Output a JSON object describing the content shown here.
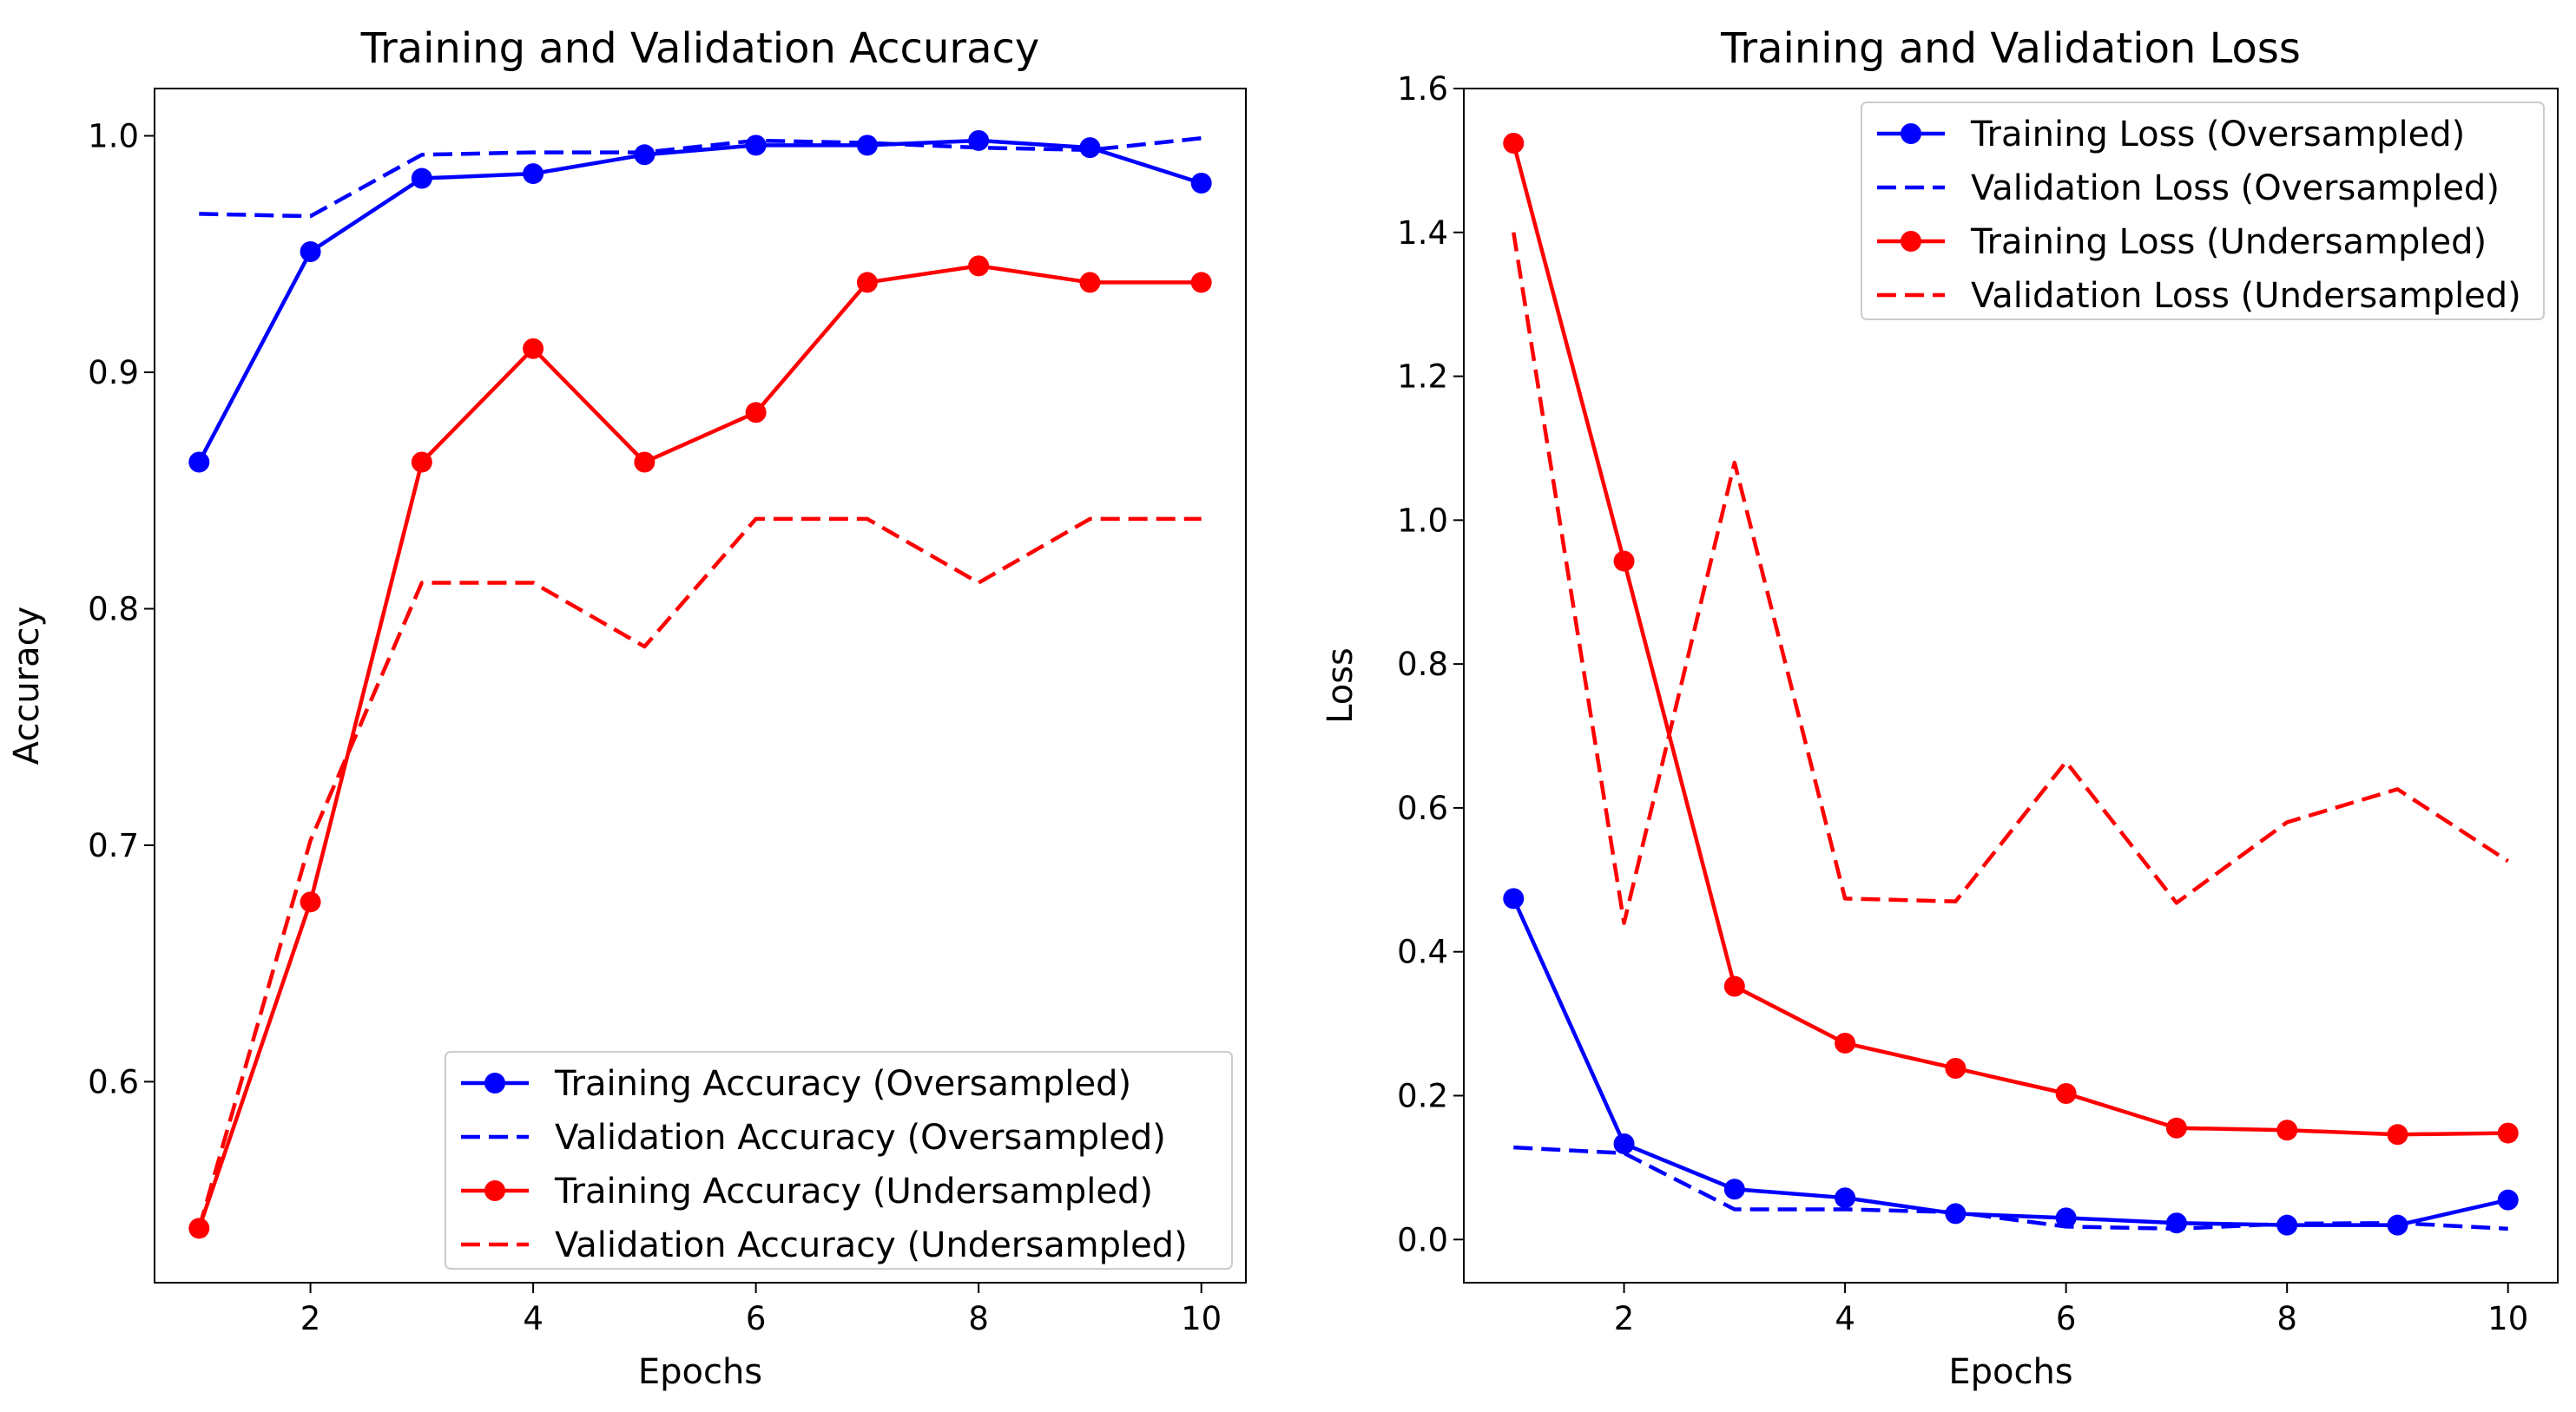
{
  "chart_data": [
    {
      "type": "line",
      "title": "Training and Validation Accuracy",
      "xlabel": "Epochs",
      "ylabel": "Accuracy",
      "xlim": [
        0.6,
        10.4
      ],
      "ylim": [
        0.515,
        1.02
      ],
      "xticks": [
        2,
        4,
        6,
        8,
        10
      ],
      "xtick_labels": [
        "2",
        "4",
        "6",
        "8",
        "10"
      ],
      "yticks": [
        0.6,
        0.7,
        0.8,
        0.9,
        1.0
      ],
      "ytick_labels": [
        "0.6",
        "0.7",
        "0.8",
        "0.9",
        "1.0"
      ],
      "grid": false,
      "legend_position": "lower-right",
      "x": [
        1,
        2,
        3,
        4,
        5,
        6,
        7,
        8,
        9,
        10
      ],
      "series": [
        {
          "name": "Training Accuracy (Oversampled)",
          "color": "#0000ff",
          "style": "solid",
          "marker": "circle",
          "values": [
            0.862,
            0.951,
            0.982,
            0.984,
            0.992,
            0.996,
            0.996,
            0.998,
            0.995,
            0.98
          ]
        },
        {
          "name": "Validation Accuracy (Oversampled)",
          "color": "#0000ff",
          "style": "dashed",
          "marker": "none",
          "values": [
            0.967,
            0.966,
            0.992,
            0.993,
            0.993,
            0.998,
            0.997,
            0.995,
            0.994,
            0.999
          ]
        },
        {
          "name": "Training Accuracy (Undersampled)",
          "color": "#ff0000",
          "style": "solid",
          "marker": "circle",
          "values": [
            0.538,
            0.676,
            0.862,
            0.91,
            0.862,
            0.883,
            0.938,
            0.945,
            0.938,
            0.938
          ]
        },
        {
          "name": "Validation Accuracy (Undersampled)",
          "color": "#ff0000",
          "style": "dashed",
          "marker": "none",
          "values": [
            0.538,
            0.702,
            0.811,
            0.811,
            0.784,
            0.838,
            0.838,
            0.811,
            0.838,
            0.838
          ]
        }
      ]
    },
    {
      "type": "line",
      "title": "Training and Validation Loss",
      "xlabel": "Epochs",
      "ylabel": "Loss",
      "xlim": [
        0.55,
        10.45
      ],
      "ylim": [
        -0.06,
        1.6
      ],
      "xticks": [
        2,
        4,
        6,
        8,
        10
      ],
      "xtick_labels": [
        "2",
        "4",
        "6",
        "8",
        "10"
      ],
      "yticks": [
        0.0,
        0.2,
        0.4,
        0.6,
        0.8,
        1.0,
        1.2,
        1.4,
        1.6
      ],
      "ytick_labels": [
        "0.0",
        "0.2",
        "0.4",
        "0.6",
        "0.8",
        "1.0",
        "1.2",
        "1.4",
        "1.6"
      ],
      "grid": false,
      "legend_position": "upper-right",
      "x": [
        1,
        2,
        3,
        4,
        5,
        6,
        7,
        8,
        9,
        10
      ],
      "series": [
        {
          "name": "Training Loss (Oversampled)",
          "color": "#0000ff",
          "style": "solid",
          "marker": "circle",
          "values": [
            0.474,
            0.133,
            0.07,
            0.058,
            0.036,
            0.03,
            0.023,
            0.02,
            0.02,
            0.055
          ]
        },
        {
          "name": "Validation Loss (Oversampled)",
          "color": "#0000ff",
          "style": "dashed",
          "marker": "none",
          "values": [
            0.128,
            0.12,
            0.042,
            0.042,
            0.038,
            0.018,
            0.015,
            0.022,
            0.023,
            0.015
          ]
        },
        {
          "name": "Training Loss (Undersampled)",
          "color": "#ff0000",
          "style": "solid",
          "marker": "circle",
          "values": [
            1.524,
            0.943,
            0.352,
            0.273,
            0.238,
            0.203,
            0.155,
            0.152,
            0.146,
            0.148
          ]
        },
        {
          "name": "Validation Loss (Undersampled)",
          "color": "#ff0000",
          "style": "dashed",
          "marker": "none",
          "values": [
            1.4,
            0.44,
            1.08,
            0.474,
            0.47,
            0.664,
            0.468,
            0.58,
            0.626,
            0.526
          ]
        }
      ]
    }
  ]
}
